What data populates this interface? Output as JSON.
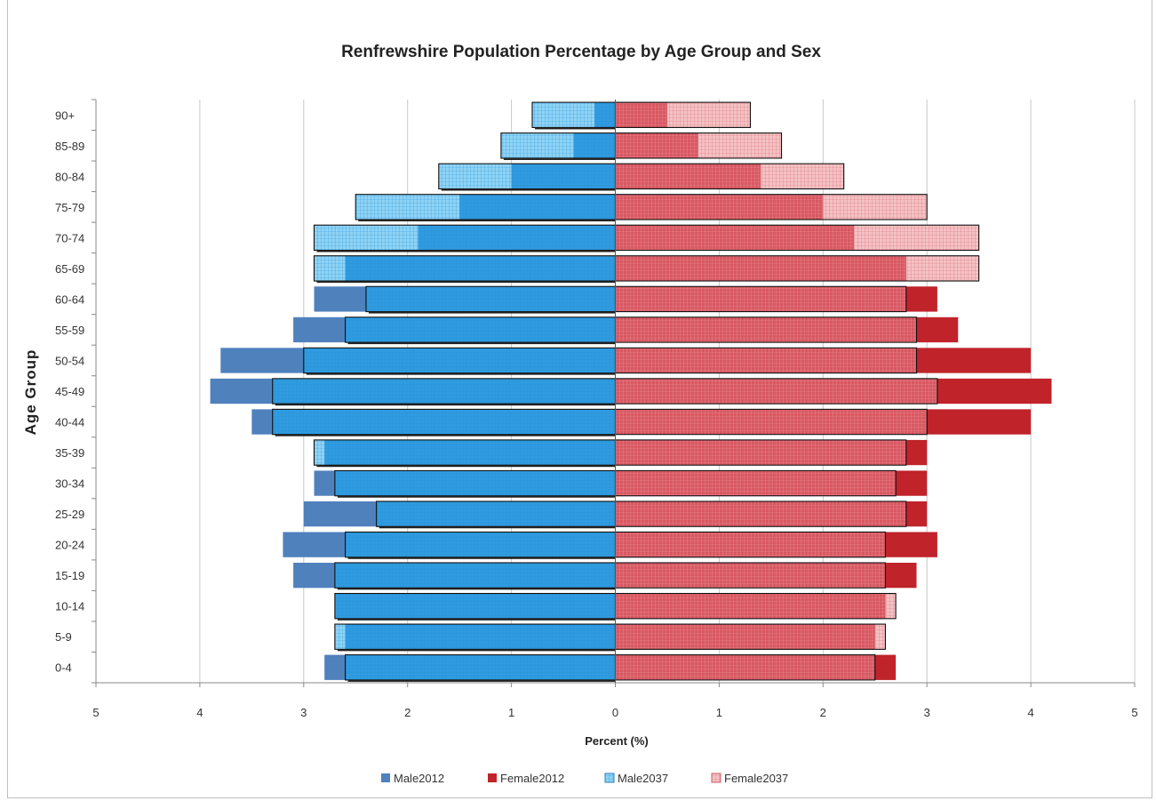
{
  "chart_data": {
    "type": "bar",
    "orientation": "horizontal",
    "layout": "population-pyramid",
    "title": "Renfrewshire Population Percentage by Age Group and Sex",
    "xlabel": "Percent (%)",
    "ylabel": "Age Group",
    "xlim": [
      -5,
      5
    ],
    "x_ticks": [
      "5",
      "4",
      "3",
      "2",
      "1",
      "0",
      "1",
      "2",
      "3",
      "4",
      "5"
    ],
    "grid": "vertical",
    "legend_position": "bottom",
    "categories": [
      "0-4",
      "5-9",
      "10-14",
      "15-19",
      "20-24",
      "25-29",
      "30-34",
      "35-39",
      "40-44",
      "45-49",
      "50-54",
      "55-59",
      "60-64",
      "65-69",
      "70-74",
      "75-79",
      "80-84",
      "85-89",
      "90+"
    ],
    "series": [
      {
        "name": "Male2012",
        "side": "left",
        "color": "#4f81bd",
        "values": [
          2.8,
          2.6,
          2.7,
          3.1,
          3.2,
          3.0,
          2.9,
          2.8,
          3.5,
          3.9,
          3.8,
          3.1,
          2.9,
          2.6,
          1.9,
          1.5,
          1.0,
          0.4,
          0.2
        ]
      },
      {
        "name": "Female2012",
        "side": "right",
        "color": "#c0232a",
        "values": [
          2.7,
          2.5,
          2.6,
          2.9,
          3.1,
          3.0,
          3.0,
          3.0,
          4.0,
          4.2,
          4.0,
          3.3,
          3.1,
          2.8,
          2.3,
          2.0,
          1.4,
          0.8,
          0.5
        ]
      },
      {
        "name": "Male2037",
        "side": "left",
        "color": "#2f9be0",
        "pattern": "grid-light",
        "pattern_color": "#8fd3f5",
        "values": [
          2.6,
          2.7,
          2.7,
          2.7,
          2.6,
          2.3,
          2.7,
          2.9,
          3.3,
          3.3,
          3.0,
          2.6,
          2.4,
          2.9,
          2.9,
          2.5,
          1.7,
          1.1,
          0.8
        ]
      },
      {
        "name": "Female2037",
        "side": "right",
        "color": "#dc6f78",
        "pattern": "grid-light",
        "pattern_color": "#f4c2c4",
        "values": [
          2.5,
          2.6,
          2.7,
          2.6,
          2.6,
          2.8,
          2.7,
          2.8,
          3.0,
          3.1,
          2.9,
          2.9,
          2.8,
          3.5,
          3.5,
          3.0,
          2.2,
          1.6,
          1.3
        ]
      }
    ]
  }
}
